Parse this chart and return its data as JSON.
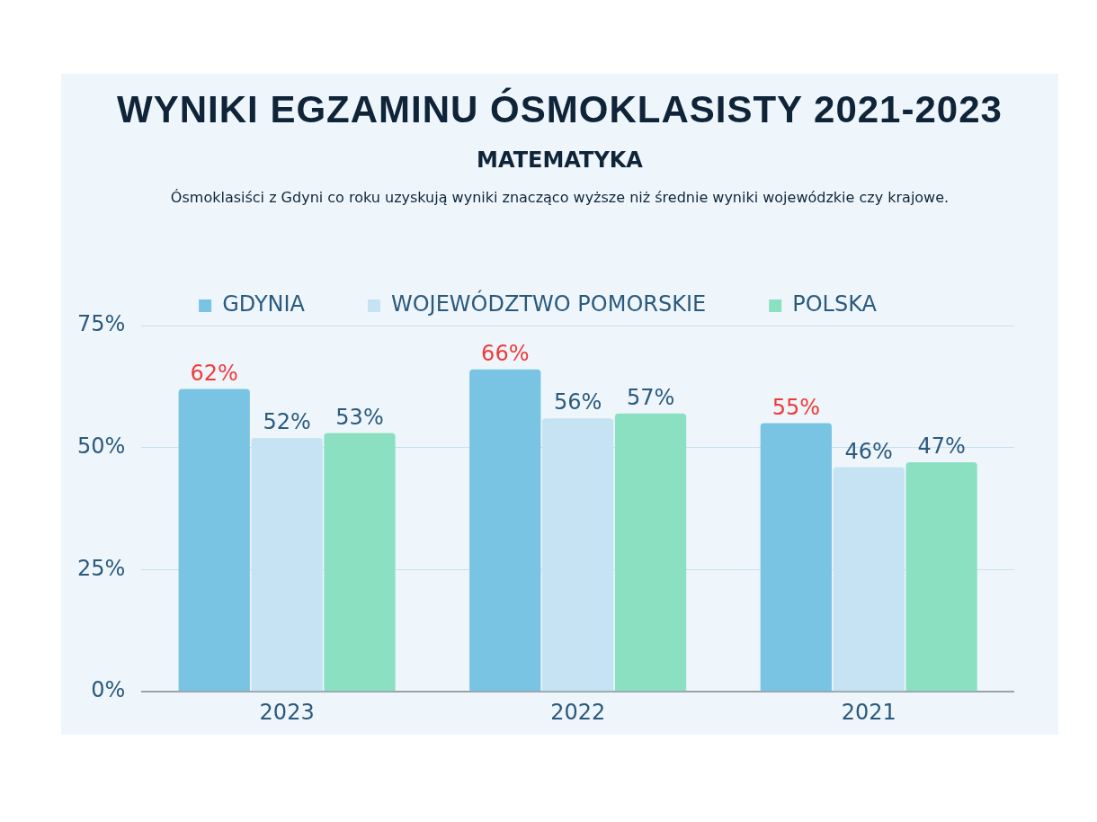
{
  "chart_data": {
    "type": "bar",
    "title": "WYNIKI EGZAMINU ÓSMOKLASISTY 2021-2023",
    "subtitle": "MATEMATYKA",
    "annotations": [
      "Ósmoklasiści z Gdyni co roku uzyskują wyniki znacząco wyższe niż średnie wyniki wojewódzkie czy krajowe."
    ],
    "categories": [
      "2023",
      "2022",
      "2021"
    ],
    "series": [
      {
        "name": "GDYNIA",
        "color": "#79c3e3",
        "values": [
          62,
          66,
          55
        ],
        "value_labels": [
          "62%",
          "66%",
          "55%"
        ]
      },
      {
        "name": "WOJEWÓDZTWO POMORSKIE",
        "color": "#c5e3f3",
        "values": [
          52,
          56,
          46
        ],
        "value_labels": [
          "52%",
          "56%",
          "46%"
        ]
      },
      {
        "name": "POLSKA",
        "color": "#8ce0c2",
        "values": [
          53,
          57,
          47
        ],
        "value_labels": [
          "53%",
          "57%",
          "47%"
        ]
      }
    ],
    "ylim": [
      0,
      75
    ],
    "yticks": [
      {
        "value": 0,
        "label": "0%"
      },
      {
        "value": 25,
        "label": "25%"
      },
      {
        "value": 50,
        "label": "50%"
      },
      {
        "value": 75,
        "label": "75%"
      }
    ],
    "grid": "y",
    "legend": "top"
  }
}
